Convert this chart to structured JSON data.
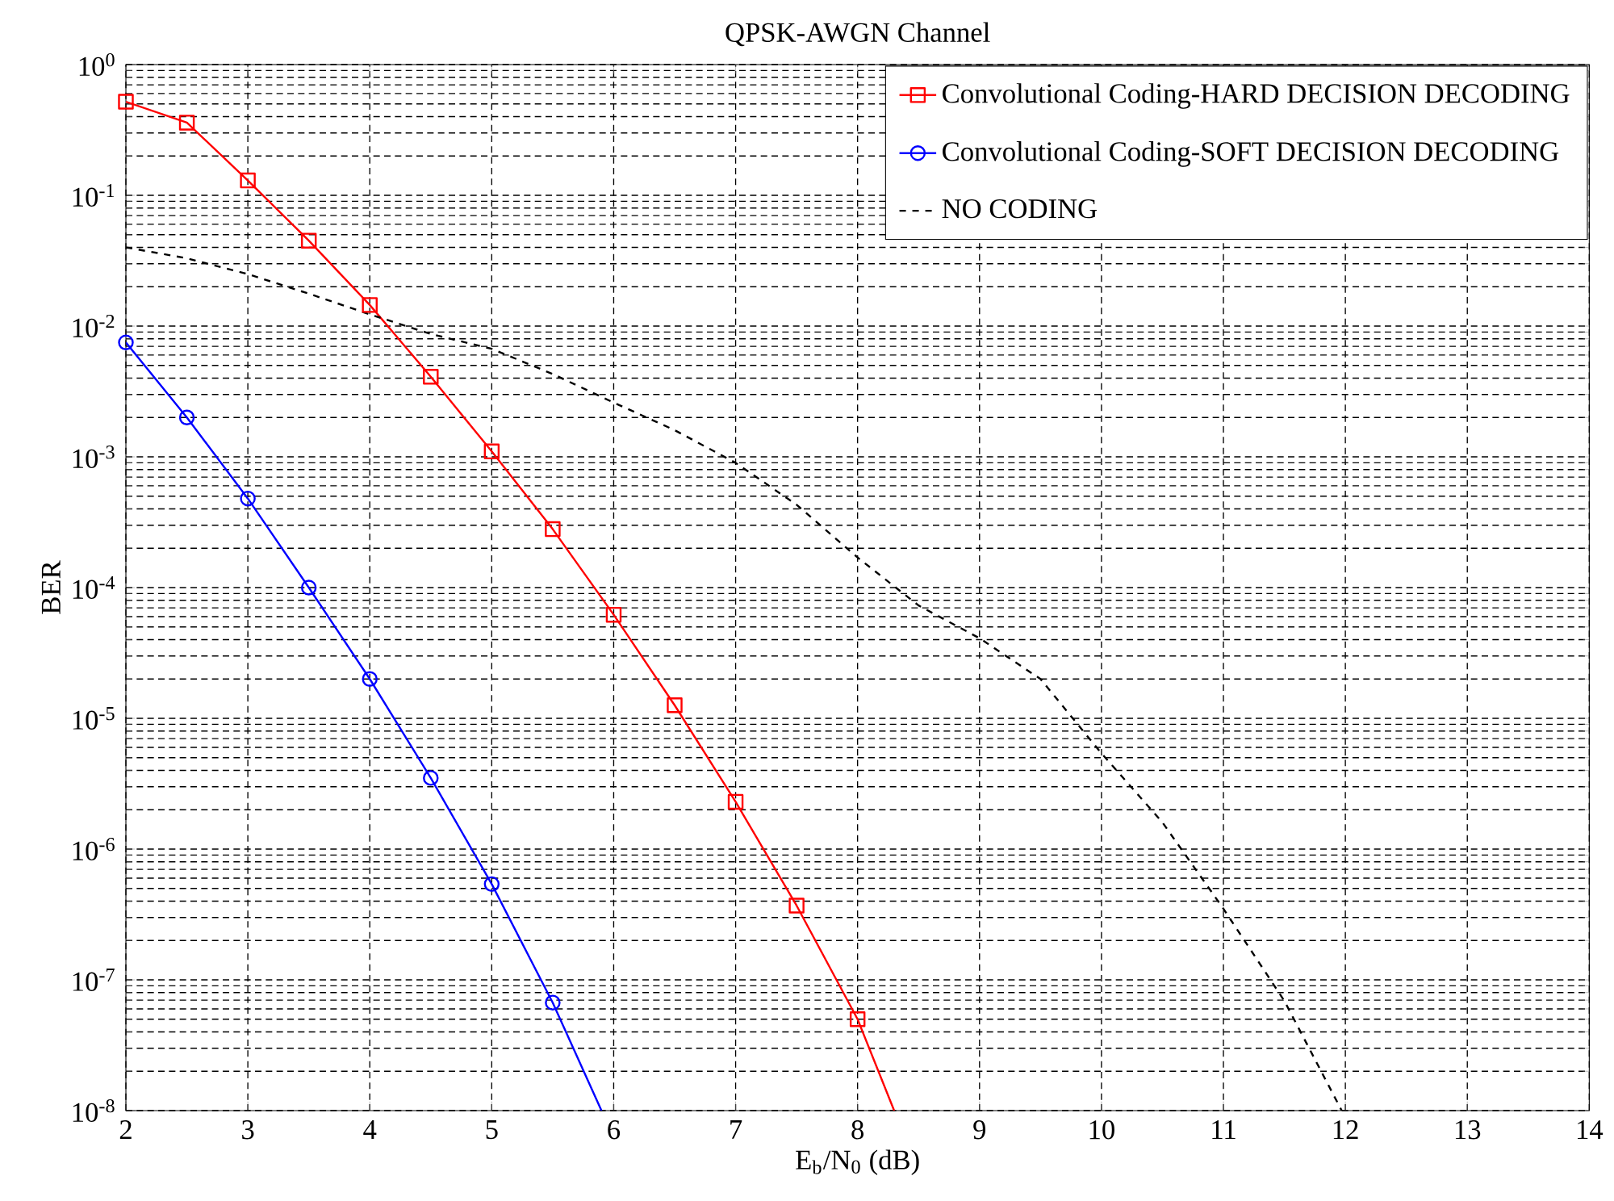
{
  "chart_data": {
    "type": "line",
    "title": "QPSK-AWGN Channel",
    "xlabel": "E$_{b}$/N$_{0}$ (dB)",
    "ylabel": "BER",
    "log": "y",
    "grid": true,
    "legend": "top right",
    "xlim": [
      2,
      14
    ],
    "xticks": [
      2,
      3,
      4,
      5,
      6,
      7,
      8,
      9,
      10,
      11,
      12,
      13,
      14
    ],
    "ylim": [
      1e-08,
      1
    ],
    "yticks": [
      {
        "value": 1e-08,
        "label": "10$^{-8}$"
      },
      {
        "value": 1e-07,
        "label": "10$^{-7}$"
      },
      {
        "value": 1e-06,
        "label": "10$^{-6}$"
      },
      {
        "value": 1e-05,
        "label": "10$^{-5}$"
      },
      {
        "value": 0.0001,
        "label": "10$^{-4}$"
      },
      {
        "value": 0.001,
        "label": "10$^{-3}$"
      },
      {
        "value": 0.01,
        "label": "10$^{-2}$"
      },
      {
        "value": 0.1,
        "label": "10$^{-1}$"
      },
      {
        "value": 1,
        "label": "10$^{0}$"
      }
    ],
    "series": [
      {
        "name": "Convolutional Coding-HARD DECISION DECODING",
        "color": "#ff0000",
        "marker": "square",
        "line_style": "solid",
        "x": [
          2,
          2.5,
          3,
          3.5,
          4,
          4.5,
          5,
          5.5,
          6,
          6.5,
          7,
          7.5,
          8,
          8.3
        ],
        "values": [
          0.52,
          0.36,
          0.13,
          0.045,
          0.0145,
          0.0041,
          0.0011,
          0.00028,
          6.2e-05,
          1.26e-05,
          2.3e-06,
          3.7e-07,
          5e-08,
          1e-08
        ]
      },
      {
        "name": "Convolutional Coding-SOFT DECISION DECODING",
        "color": "#0000ff",
        "marker": "circle",
        "line_style": "solid",
        "x": [
          2,
          2.5,
          3,
          3.5,
          4,
          4.5,
          5,
          5.5,
          5.9
        ],
        "values": [
          0.0075,
          0.002,
          0.00048,
          0.0001,
          2e-05,
          3.5e-06,
          5.4e-07,
          6.7e-08,
          1e-08
        ]
      },
      {
        "name": "NO CODING",
        "color": "#000000",
        "marker": "none",
        "line_style": "dashed",
        "x": [
          2,
          2.5,
          3,
          3.5,
          4,
          4.5,
          5,
          5.5,
          6,
          6.5,
          7,
          7.5,
          8,
          8.5,
          9,
          9.5,
          10,
          10.5,
          11,
          11.5,
          11.97
        ],
        "values": [
          0.04,
          0.033,
          0.025,
          0.0177,
          0.0123,
          0.0087,
          0.0067,
          0.0043,
          0.0026,
          0.0016,
          0.0009,
          0.00043,
          0.00017,
          7.3e-05,
          4.1e-05,
          2e-05,
          5.4e-06,
          1.6e-06,
          3.5e-07,
          6.9e-08,
          1e-08
        ]
      }
    ]
  }
}
